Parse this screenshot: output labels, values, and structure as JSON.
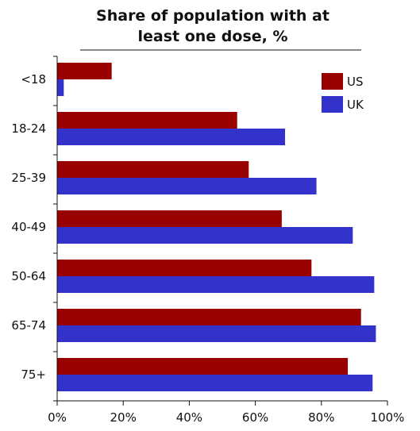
{
  "chart_data": {
    "type": "bar",
    "orientation": "horizontal",
    "title_lines": [
      "Share of population with at",
      "least one dose, %"
    ],
    "categories": [
      "<18",
      "18-24",
      "25-39",
      "40-49",
      "50-64",
      "65-74",
      "75+"
    ],
    "series": [
      {
        "name": "US",
        "color": "#990000",
        "values": [
          16.5,
          54.5,
          58,
          68,
          77,
          92,
          88
        ]
      },
      {
        "name": "UK",
        "color": "#3333cc",
        "values": [
          2,
          69,
          78.5,
          89.5,
          96,
          96.5,
          95.5
        ]
      }
    ],
    "xlim": [
      0,
      100
    ],
    "x_ticks": [
      0,
      20,
      40,
      60,
      80,
      100
    ],
    "x_tick_labels": [
      "0%",
      "20%",
      "40%",
      "60%",
      "80%",
      "100%"
    ],
    "grid": false,
    "legend_position": "top-right"
  }
}
